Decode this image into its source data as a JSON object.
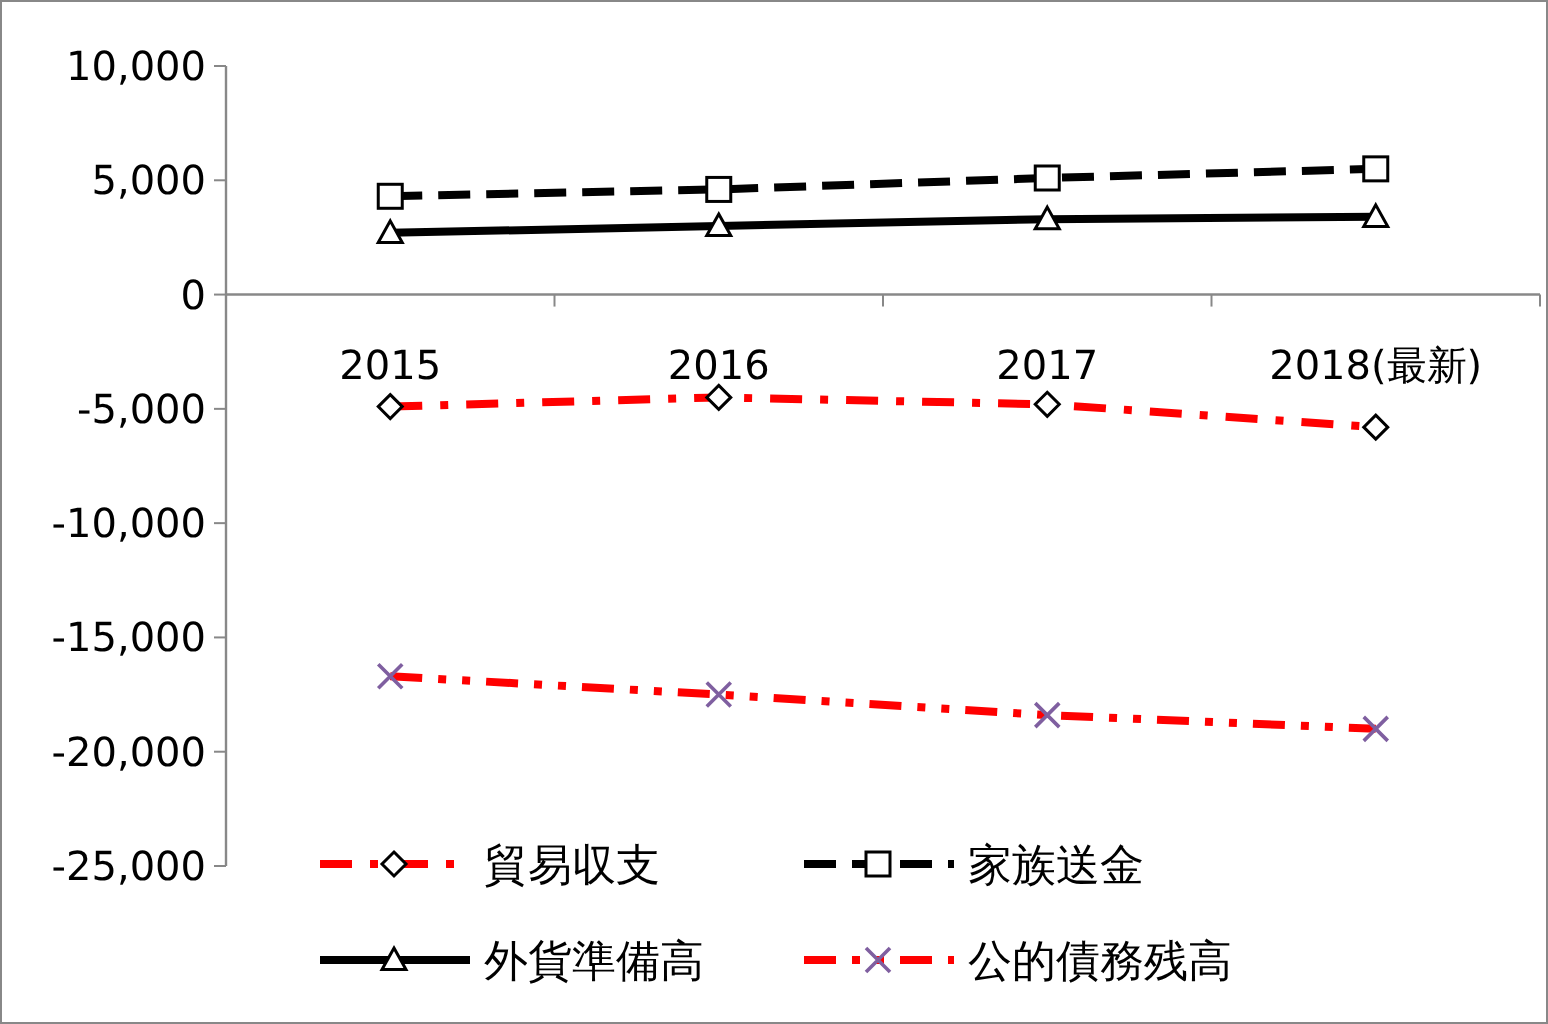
{
  "chart_data": {
    "type": "line",
    "categories": [
      "2015",
      "2016",
      "2017",
      "2018(最新)"
    ],
    "series": [
      {
        "name": "貿易収支",
        "color": "#ff0000",
        "values": [
          -4900,
          -4500,
          -4800,
          -5800
        ],
        "marker": "diamond",
        "colors": [
          "#000000",
          "#000000",
          "#000000",
          "#000000"
        ],
        "line_style": "dashdot"
      },
      {
        "name": "家族送金",
        "color": "#000000",
        "values": [
          4300,
          4600,
          5100,
          5500
        ],
        "marker": "square",
        "colors": [
          "#000000",
          "#000000",
          "#000000",
          "#000000"
        ],
        "line_style": "dashed"
      },
      {
        "name": "外貨準備高",
        "color": "#000000",
        "values": [
          2700,
          3000,
          3300,
          3400
        ],
        "marker": "triangle",
        "colors": [
          "#000000",
          "#000000",
          "#000000",
          "#000000"
        ],
        "line_style": "solid"
      },
      {
        "name": "公的債務残高",
        "color": "#ff0000",
        "values": [
          -16700,
          -17500,
          -18400,
          -19000
        ],
        "marker": "cross",
        "colors": [
          "#7f5fa0",
          "#7f5fa0",
          "#7f5fa0",
          "#7f5fa0"
        ],
        "line_style": "dashdotdot"
      }
    ],
    "ylim": [
      -25000,
      10000
    ],
    "yticks": [
      {
        "value": -25000,
        "label": "-25,000"
      },
      {
        "value": -20000,
        "label": "-20,000"
      },
      {
        "value": -15000,
        "label": "-15,000"
      },
      {
        "value": -10000,
        "label": "-10,000"
      },
      {
        "value": -5000,
        "label": "-5,000"
      },
      0,
      {
        "value": 5000,
        "label": "5,000"
      },
      {
        "value": 10000,
        "label": "10,000"
      }
    ],
    "grid": false,
    "legend": "bottom"
  }
}
